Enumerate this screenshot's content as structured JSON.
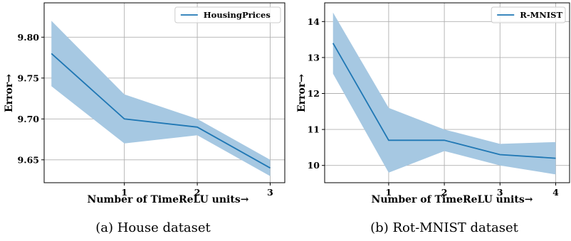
{
  "chart_data": [
    {
      "type": "line",
      "caption": "(a) House dataset",
      "xlabel": "Number of TimeReLU units→",
      "ylabel": "Error→",
      "x": [
        0,
        1,
        2,
        3
      ],
      "xticks": [
        1,
        2,
        3
      ],
      "xlim": [
        -0.1,
        3.2
      ],
      "yticks": [
        9.65,
        9.7,
        9.75,
        9.8
      ],
      "ytick_labels": [
        "9.65",
        "9.70",
        "9.75",
        "9.80"
      ],
      "ylim": [
        9.622,
        9.842
      ],
      "grid": true,
      "legend_position": "upper right",
      "color": "#1f77b4",
      "band_color": "#a6c8e2",
      "series": [
        {
          "name": "HousingPrices",
          "values": [
            9.78,
            9.7,
            9.69,
            9.64
          ],
          "upper": [
            9.82,
            9.73,
            9.7,
            9.65
          ],
          "lower": [
            9.74,
            9.67,
            9.68,
            9.63
          ]
        }
      ]
    },
    {
      "type": "line",
      "caption": "(b) Rot-MNIST dataset",
      "xlabel": "Number of TimeReLU units→",
      "ylabel": "Error→",
      "x": [
        0,
        1,
        2,
        3,
        4
      ],
      "xticks": [
        1,
        2,
        3,
        4
      ],
      "xlim": [
        -0.15,
        4.25
      ],
      "yticks": [
        10,
        11,
        12,
        13,
        14
      ],
      "ytick_labels": [
        "10",
        "11",
        "12",
        "13",
        "14"
      ],
      "ylim": [
        9.52,
        14.52
      ],
      "grid": true,
      "legend_position": "upper right",
      "color": "#1f77b4",
      "band_color": "#a6c8e2",
      "series": [
        {
          "name": "R-MNIST",
          "values": [
            13.4,
            10.7,
            10.7,
            10.3,
            10.2
          ],
          "upper": [
            14.25,
            11.6,
            11.0,
            10.6,
            10.65
          ],
          "lower": [
            12.55,
            9.8,
            10.4,
            10.0,
            9.75
          ]
        }
      ]
    }
  ]
}
